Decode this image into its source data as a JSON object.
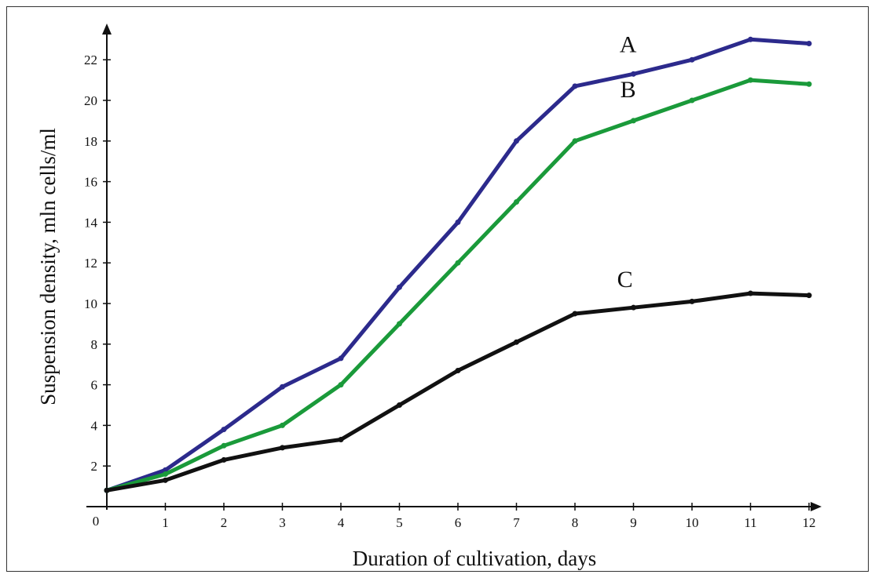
{
  "chart_data": {
    "type": "line",
    "title": "",
    "xlabel": "Duration of cultivation, days",
    "ylabel": "Suspension density, mln cells/ml",
    "origin_label": "0",
    "x_ticks": [
      1,
      2,
      3,
      4,
      5,
      6,
      7,
      8,
      9,
      10,
      11,
      12
    ],
    "y_ticks": [
      2,
      4,
      6,
      8,
      10,
      12,
      14,
      16,
      18,
      20,
      22
    ],
    "xlim": [
      0,
      12
    ],
    "ylim": [
      0,
      23
    ],
    "grid": false,
    "legend": "inline labels",
    "series": [
      {
        "name": "A",
        "color": "#2c2a8c",
        "x": [
          0,
          1,
          2,
          3,
          4,
          5,
          6,
          7,
          8,
          9,
          10,
          11,
          12
        ],
        "y": [
          0.8,
          1.8,
          3.8,
          5.9,
          7.3,
          10.8,
          14.0,
          18.0,
          20.7,
          21.3,
          22.0,
          23.0,
          22.8
        ]
      },
      {
        "name": "B",
        "color": "#1a9a3a",
        "x": [
          0,
          1,
          2,
          3,
          4,
          5,
          6,
          7,
          8,
          9,
          10,
          11,
          12
        ],
        "y": [
          0.8,
          1.6,
          3.0,
          4.0,
          6.0,
          9.0,
          12.0,
          15.0,
          18.0,
          19.0,
          20.0,
          21.0,
          20.8
        ]
      },
      {
        "name": "C",
        "color": "#111111",
        "x": [
          0,
          1,
          2,
          3,
          4,
          5,
          6,
          7,
          8,
          9,
          10,
          11,
          12
        ],
        "y": [
          0.8,
          1.3,
          2.3,
          2.9,
          3.3,
          5.0,
          6.7,
          8.1,
          9.5,
          9.8,
          10.1,
          10.5,
          10.4
        ]
      }
    ]
  }
}
